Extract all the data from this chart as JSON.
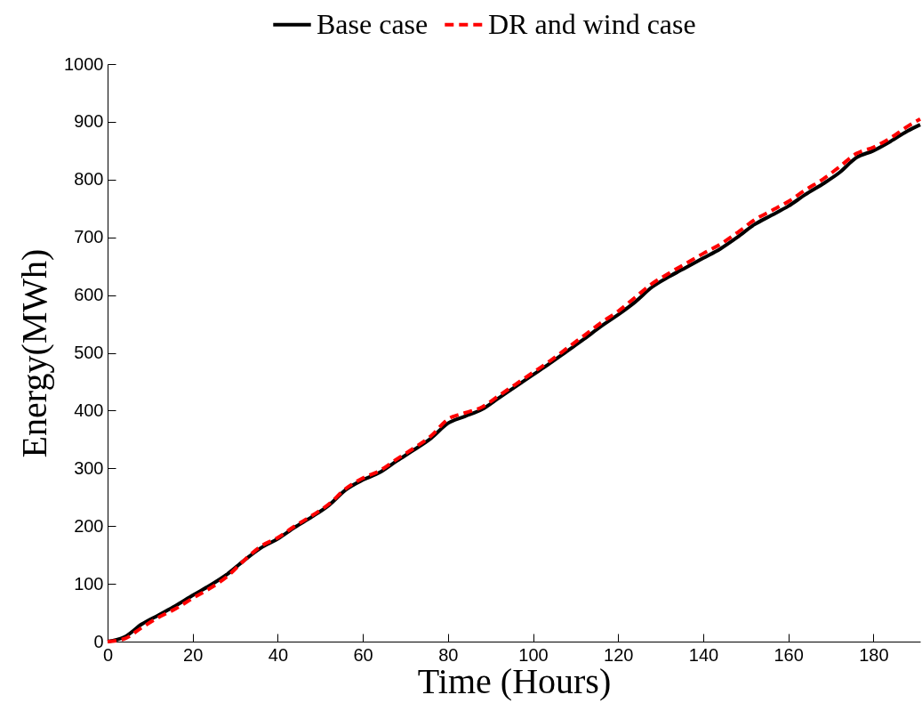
{
  "chart_data": {
    "type": "line",
    "xlabel": "Time (Hours)",
    "ylabel": "Energy(MWh)",
    "x": [
      0,
      4,
      8,
      12,
      16,
      20,
      24,
      28,
      32,
      36,
      40,
      44,
      48,
      52,
      56,
      60,
      64,
      68,
      72,
      76,
      80,
      84,
      88,
      92,
      96,
      100,
      104,
      108,
      112,
      116,
      120,
      124,
      128,
      132,
      136,
      140,
      144,
      148,
      152,
      156,
      160,
      164,
      168,
      172,
      176,
      180,
      184,
      188,
      191
    ],
    "series": [
      {
        "name": "Base case",
        "color": "#000000",
        "line_style": "solid",
        "values": [
          0,
          8,
          30,
          46,
          62,
          80,
          97,
          116,
          140,
          162,
          178,
          198,
          216,
          236,
          263,
          280,
          293,
          313,
          332,
          352,
          378,
          390,
          402,
          422,
          442,
          462,
          482,
          503,
          524,
          546,
          566,
          588,
          614,
          632,
          648,
          664,
          680,
          700,
          722,
          738,
          754,
          774,
          792,
          812,
          838,
          850,
          866,
          884,
          895
        ]
      },
      {
        "name": "DR and wind case",
        "color": "#ff0000",
        "line_style": "dashed",
        "values": [
          0,
          5,
          24,
          42,
          57,
          75,
          92,
          112,
          140,
          165,
          180,
          200,
          218,
          238,
          265,
          283,
          296,
          316,
          335,
          356,
          385,
          396,
          406,
          426,
          446,
          466,
          486,
          508,
          530,
          552,
          572,
          596,
          620,
          638,
          655,
          672,
          688,
          708,
          730,
          746,
          762,
          782,
          800,
          822,
          845,
          856,
          872,
          892,
          905
        ]
      }
    ],
    "xlim": [
      0,
      191
    ],
    "xticks": [
      0,
      20,
      40,
      60,
      80,
      100,
      120,
      140,
      160,
      180
    ],
    "ylim": [
      0,
      1000
    ],
    "yticks": [
      0,
      100,
      200,
      300,
      400,
      500,
      600,
      700,
      800,
      900,
      1000
    ],
    "legend": "top"
  }
}
